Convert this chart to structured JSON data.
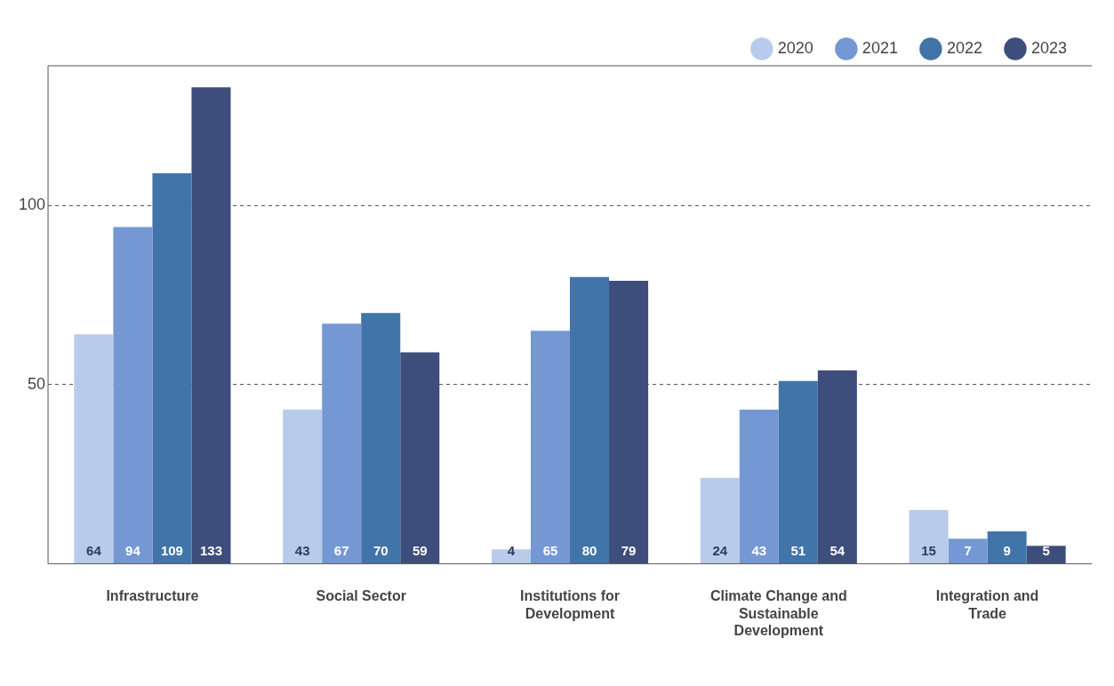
{
  "chart_data": {
    "type": "bar",
    "categories": [
      "Infrastructure",
      "Social Sector",
      "Institutions for Development",
      "Climate Change and Sustainable Development",
      "Integration and Trade"
    ],
    "series": [
      {
        "name": "2020",
        "color": "#b8cbea",
        "values": [
          64,
          43,
          4,
          24,
          15
        ]
      },
      {
        "name": "2021",
        "color": "#7598d4",
        "values": [
          94,
          67,
          65,
          43,
          7
        ]
      },
      {
        "name": "2022",
        "color": "#4174a9",
        "values": [
          109,
          70,
          80,
          51,
          9
        ]
      },
      {
        "name": "2023",
        "color": "#3d4d7c",
        "values": [
          133,
          59,
          79,
          54,
          5
        ]
      }
    ],
    "ylim": [
      0,
      139
    ],
    "yticks": [
      {
        "value": 0,
        "label": null
      },
      50,
      100
    ],
    "grid": "y",
    "legend": "top right",
    "data_labels": true
  }
}
